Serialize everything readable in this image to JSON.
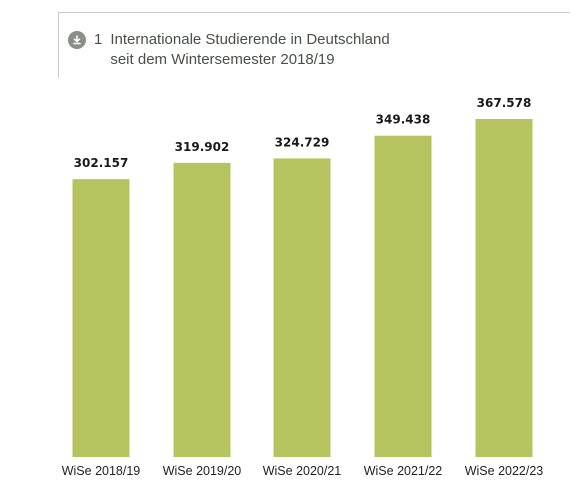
{
  "figure": {
    "number": "1",
    "title_line1": "Internationale Studierende in Deutschland",
    "title_line2": "seit dem Wintersemester 2018/19",
    "icon": "download-icon"
  },
  "colors": {
    "bar": "#b6c45f",
    "icon": "#8a8f8a",
    "text": "#4a4f4a"
  },
  "chart_data": {
    "type": "bar",
    "categories": [
      "WiSe 2018/19",
      "WiSe 2019/20",
      "WiSe 2020/21",
      "WiSe 2021/22",
      "WiSe 2022/23"
    ],
    "values": [
      302157,
      319902,
      324729,
      349438,
      367578
    ],
    "value_labels": [
      "302.157",
      "319.902",
      "324.729",
      "349.438",
      "367.578"
    ],
    "title": "",
    "xlabel": "",
    "ylabel": "",
    "ylim": [
      0,
      400000
    ],
    "grid": false,
    "legend": "none"
  }
}
